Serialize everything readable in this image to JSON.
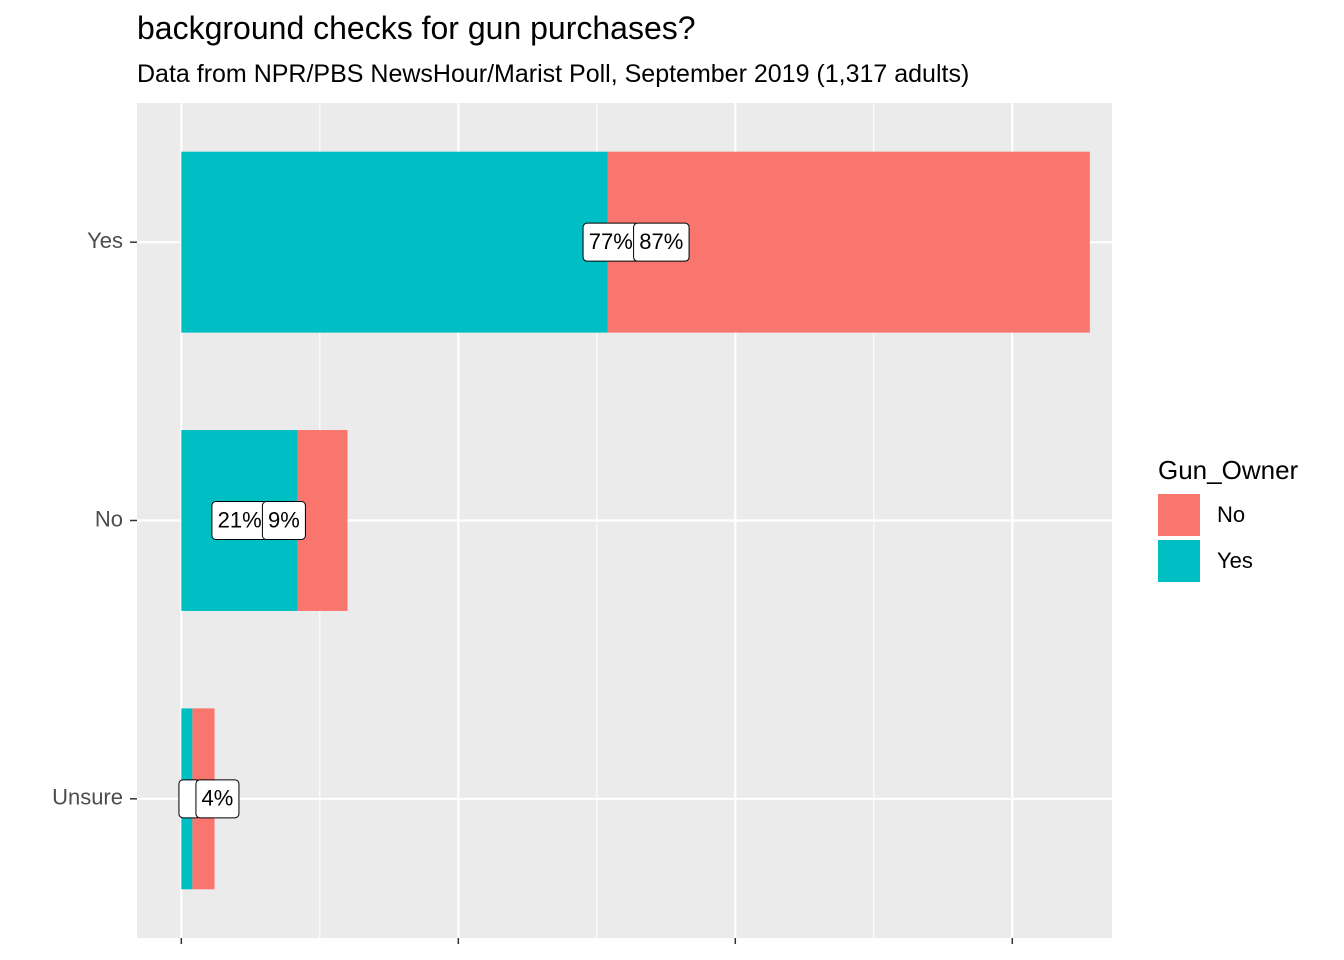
{
  "title": "background checks for gun purchases?",
  "subtitle": "Data from NPR/PBS NewsHour/Marist Poll, September 2019 (1,317 adults)",
  "colors": {
    "No": "#F8766D",
    "Yes": "#00BFC4",
    "panel": "#EBEBEB",
    "grid": "#FFFFFF",
    "axis_text": "#4D4D4D"
  },
  "legend": {
    "title": "Gun_Owner",
    "items": [
      {
        "label": "No",
        "color": "#F8766D"
      },
      {
        "label": "Yes",
        "color": "#00BFC4"
      }
    ]
  },
  "chart_data": {
    "type": "bar",
    "orientation": "horizontal",
    "stacked": true,
    "categories": [
      "Yes",
      "No",
      "Unsure"
    ],
    "series": [
      {
        "name": "Yes",
        "values": [
          77,
          21,
          2
        ]
      },
      {
        "name": "No",
        "values": [
          87,
          9,
          4
        ]
      }
    ],
    "labels": [
      {
        "category": "Yes",
        "series": "Yes",
        "text": "77%"
      },
      {
        "category": "Yes",
        "series": "No",
        "text": "87%"
      },
      {
        "category": "No",
        "series": "Yes",
        "text": "21%"
      },
      {
        "category": "No",
        "series": "No",
        "text": "9%"
      },
      {
        "category": "Unsure",
        "series": "Yes",
        "text": ""
      },
      {
        "category": "Unsure",
        "series": "No",
        "text": "4%"
      }
    ],
    "xlim": [
      -8,
      168
    ],
    "grid": true,
    "legend_position": "right"
  }
}
